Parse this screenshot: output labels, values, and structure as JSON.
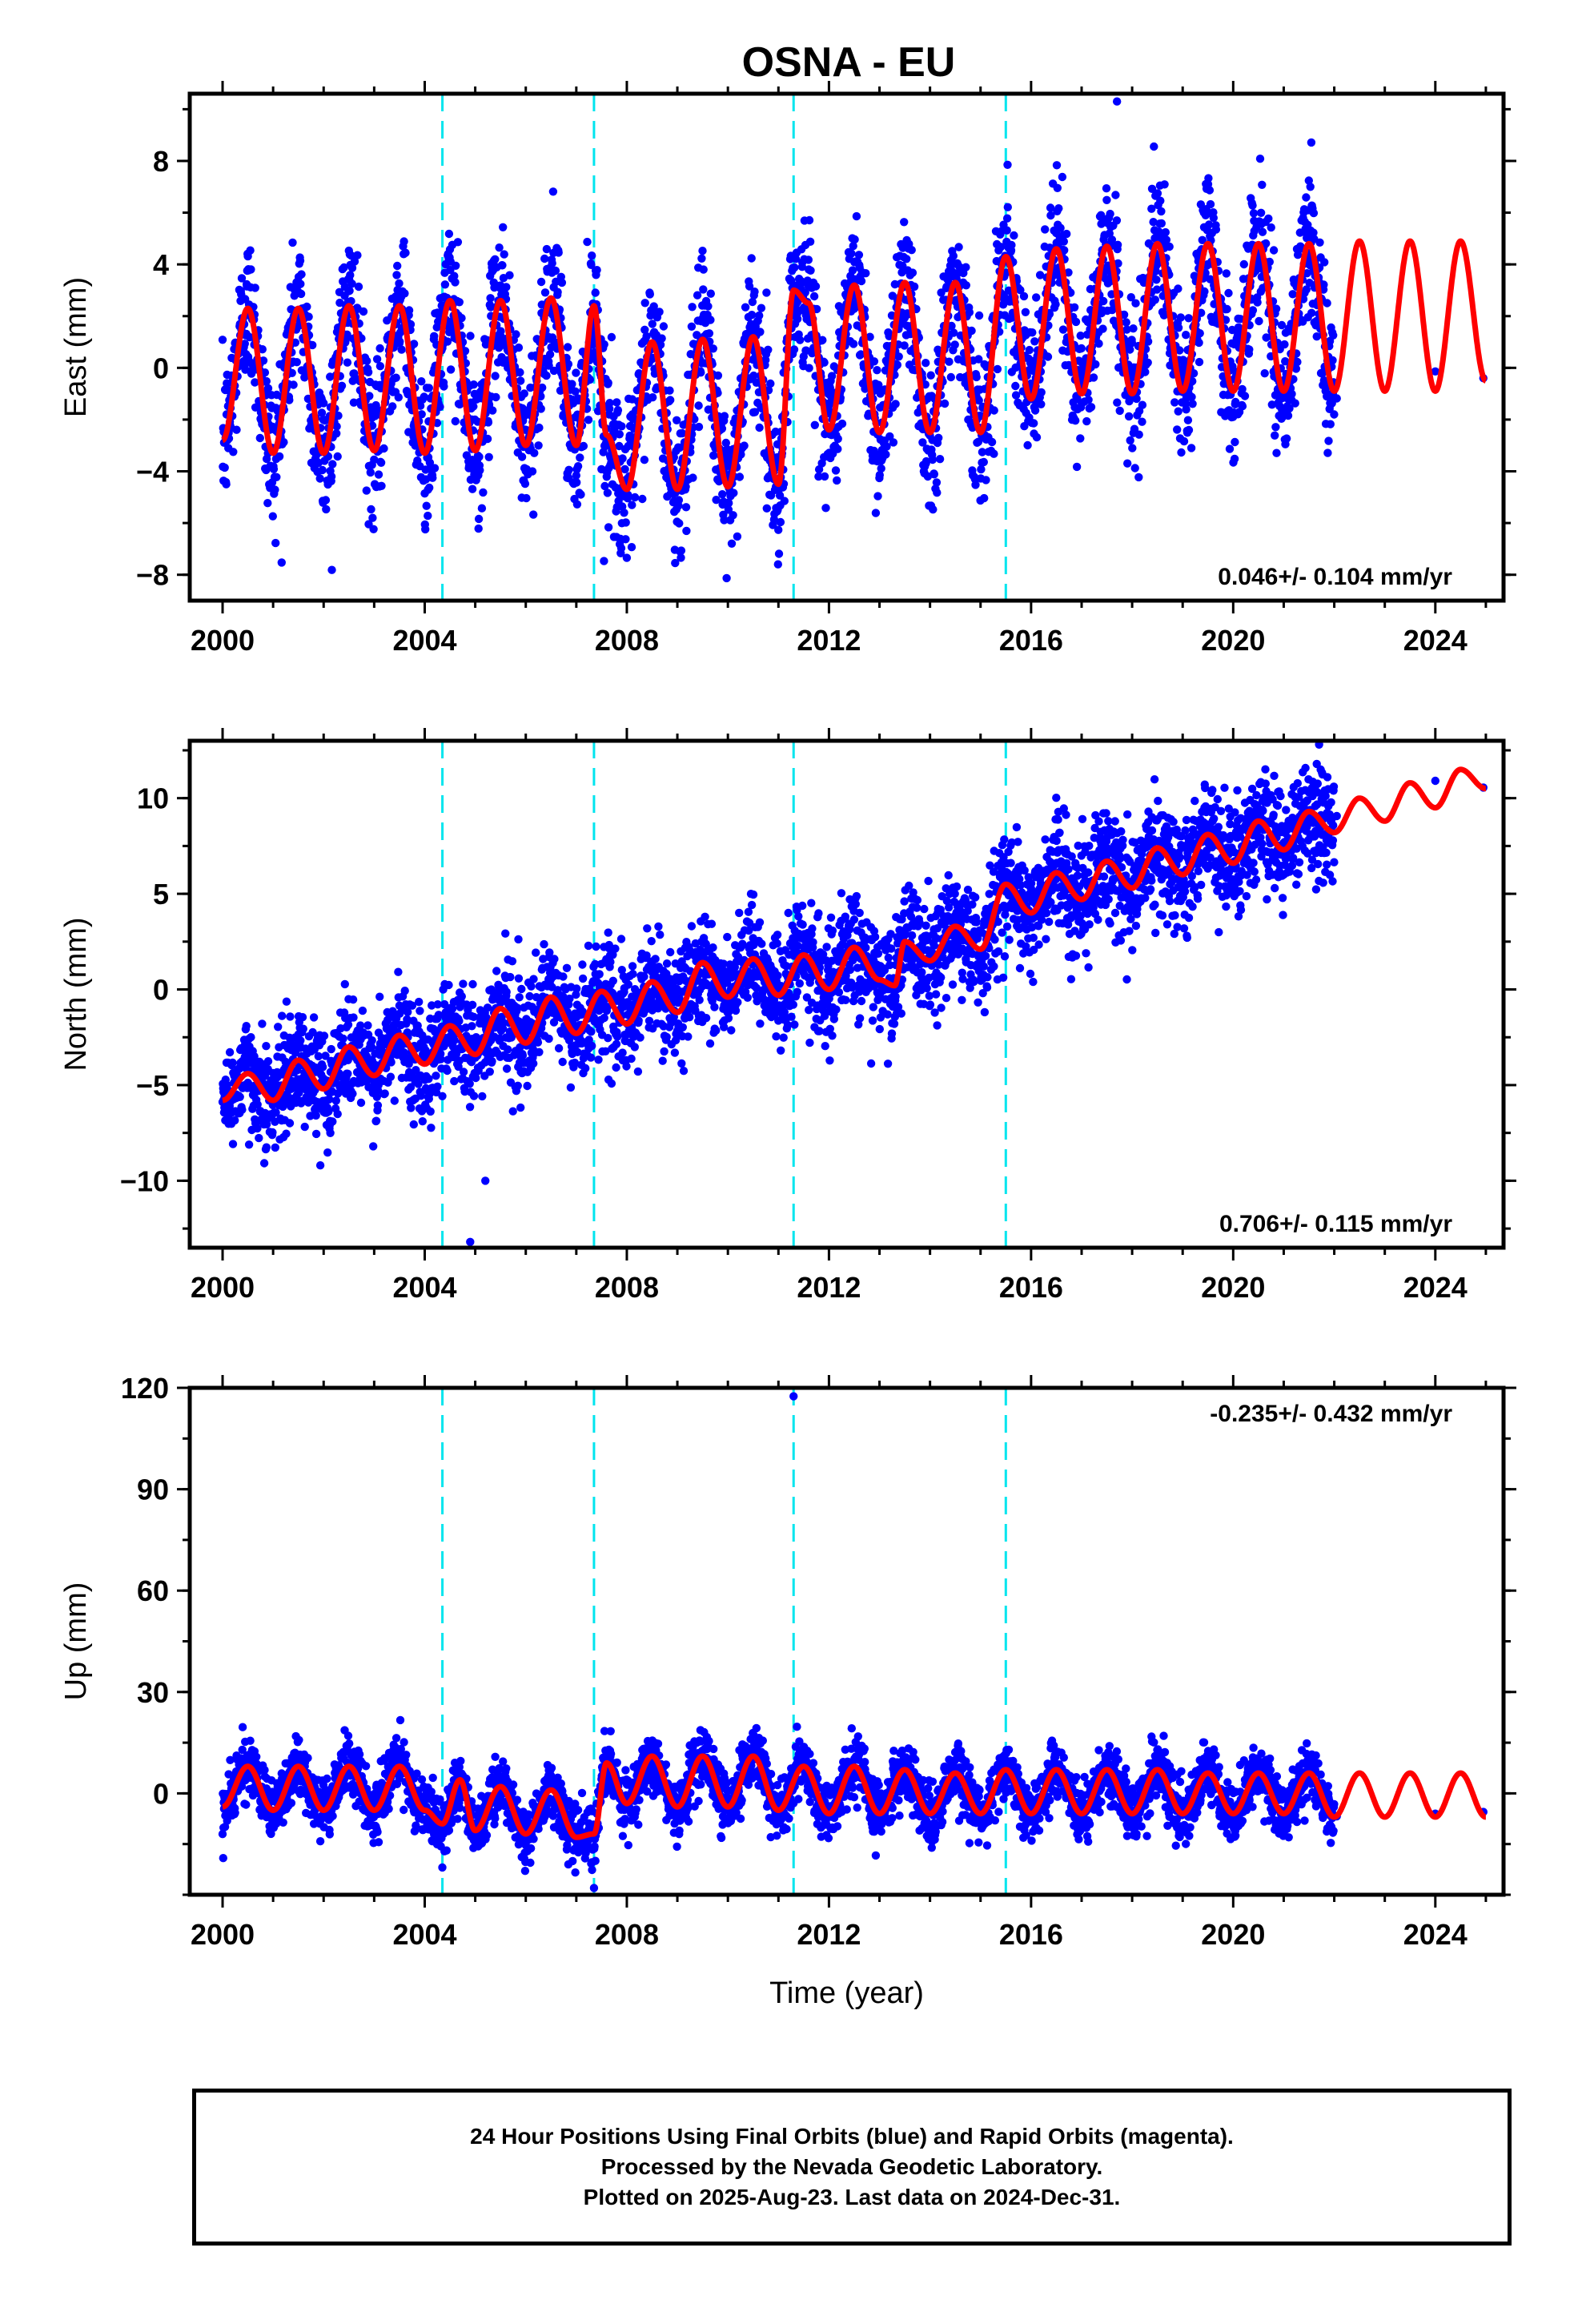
{
  "title": "OSNA - EU",
  "colors": {
    "data_points": "#0000ff",
    "model_fit": "#ff0000",
    "offset_lines": "#00e5ee",
    "frame": "#000000"
  },
  "chart_data": [
    {
      "type": "scatter",
      "component": "East",
      "ylabel": "East (mm)",
      "xlabel": "",
      "xlim": [
        1999.35,
        2025.35
      ],
      "ylim": [
        -9,
        10.6
      ],
      "xticks": [
        "2000",
        "2004",
        "2008",
        "2012",
        "2016",
        "2020",
        "2024"
      ],
      "yticks": [
        "−8",
        "−4",
        "0",
        "4",
        "8"
      ],
      "rate_label": "0.046+/- 0.104 mm/yr",
      "offset_epochs": [
        2004.35,
        2007.35,
        2011.3,
        2015.5
      ],
      "series": [
        {
          "name": "",
          "kind": "points",
          "color": "#0000ff",
          "x_range": [
            2000.0,
            2022.0
          ],
          "approx_outliers": [
            [
              2017.7,
              10.3
            ]
          ]
        },
        {
          "name": "",
          "kind": "model",
          "color": "#ff0000",
          "x": [
            2000.0,
            2000.5,
            2001.0,
            2001.5,
            2002.0,
            2002.5,
            2003.0,
            2003.5,
            2004.0,
            2004.5,
            2005.0,
            2005.5,
            2006.0,
            2006.5,
            2007.0,
            2007.35,
            2007.6,
            2008.0,
            2008.5,
            2009.0,
            2009.5,
            2010.0,
            2010.5,
            2011.0,
            2011.3,
            2011.6,
            2012.0,
            2012.5,
            2013.0,
            2013.5,
            2014.0,
            2014.5,
            2015.0,
            2015.5,
            2016.0,
            2016.5,
            2017.0,
            2017.5,
            2018.0,
            2018.5,
            2019.0,
            2019.5,
            2020.0,
            2020.5,
            2021.0,
            2021.5,
            2022.0,
            2022.5,
            2023.0,
            2023.5,
            2024.0,
            2024.5,
            2025.0
          ],
          "y": [
            -2.8,
            2.3,
            -3.3,
            2.3,
            -3.3,
            2.4,
            -3.2,
            2.4,
            -3.3,
            2.6,
            -3.2,
            2.6,
            -3.0,
            2.7,
            -3.0,
            2.4,
            -2.6,
            -4.7,
            1.0,
            -4.7,
            1.1,
            -4.6,
            1.2,
            -4.5,
            3.0,
            2.5,
            -2.4,
            3.2,
            -2.5,
            3.3,
            -2.5,
            3.3,
            -2.5,
            4.3,
            -1.2,
            4.6,
            -1.0,
            4.7,
            -1.0,
            4.8,
            -0.9,
            4.8,
            -0.9,
            4.8,
            -0.9,
            4.8,
            -0.9,
            4.9,
            -0.9,
            4.9,
            -0.9,
            4.9,
            -0.5
          ]
        }
      ]
    },
    {
      "type": "scatter",
      "component": "North",
      "ylabel": "North (mm)",
      "xlabel": "",
      "xlim": [
        1999.35,
        2025.35
      ],
      "ylim": [
        -13.5,
        13.0
      ],
      "xticks": [
        "2000",
        "2004",
        "2008",
        "2012",
        "2016",
        "2020",
        "2024"
      ],
      "yticks": [
        "−10",
        "−5",
        "0",
        "5",
        "10"
      ],
      "rate_label": "0.706+/- 0.115 mm/yr",
      "offset_epochs": [
        2004.35,
        2007.35,
        2011.3,
        2015.5
      ],
      "series": [
        {
          "name": "",
          "kind": "points",
          "color": "#0000ff",
          "x_range": [
            2000.0,
            2022.0
          ],
          "approx_outliers": [
            [
              2004.9,
              -13.2
            ],
            [
              2005.2,
              -10.0
            ],
            [
              2021.7,
              12.8
            ]
          ]
        },
        {
          "name": "",
          "kind": "model",
          "color": "#ff0000",
          "x": [
            2000.0,
            2000.5,
            2001.0,
            2001.5,
            2002.0,
            2002.5,
            2003.0,
            2003.5,
            2004.0,
            2004.5,
            2005.0,
            2005.5,
            2006.0,
            2006.5,
            2007.0,
            2007.5,
            2008.0,
            2008.5,
            2009.0,
            2009.5,
            2010.0,
            2010.5,
            2011.0,
            2011.5,
            2012.0,
            2012.5,
            2013.0,
            2013.3,
            2013.5,
            2014.0,
            2014.5,
            2015.0,
            2015.5,
            2016.0,
            2016.5,
            2017.0,
            2017.5,
            2018.0,
            2018.5,
            2019.0,
            2019.5,
            2020.0,
            2020.5,
            2021.0,
            2021.5,
            2022.0,
            2022.5,
            2023.0,
            2023.5,
            2024.0,
            2024.5,
            2025.0
          ],
          "y": [
            -5.8,
            -4.4,
            -5.8,
            -3.7,
            -5.2,
            -3.0,
            -4.5,
            -2.4,
            -3.9,
            -1.9,
            -3.4,
            -1.0,
            -2.8,
            -0.4,
            -2.3,
            -0.1,
            -1.8,
            0.4,
            -1.2,
            1.4,
            -0.4,
            1.6,
            -0.3,
            1.8,
            0.0,
            2.2,
            0.5,
            0.2,
            2.5,
            1.5,
            3.3,
            2.1,
            5.5,
            4.0,
            6.1,
            4.7,
            6.7,
            5.3,
            7.4,
            6.0,
            8.1,
            6.6,
            8.8,
            7.3,
            9.3,
            8.2,
            10.0,
            8.8,
            10.8,
            9.5,
            11.5,
            10.5
          ]
        }
      ]
    },
    {
      "type": "scatter",
      "component": "Up",
      "ylabel": "Up (mm)",
      "xlabel": "Time (year)",
      "xlim": [
        1999.35,
        2025.35
      ],
      "ylim": [
        -30,
        120
      ],
      "xticks": [
        "2000",
        "2004",
        "2008",
        "2012",
        "2016",
        "2020",
        "2024"
      ],
      "yticks": [
        "0",
        "30",
        "60",
        "90",
        "120"
      ],
      "rate_label": "-0.235+/- 0.432 mm/yr",
      "offset_epochs": [
        2004.35,
        2007.35,
        2011.3,
        2015.5
      ],
      "series": [
        {
          "name": "",
          "kind": "points",
          "color": "#0000ff",
          "x_range": [
            2000.0,
            2022.0
          ],
          "approx_outliers": [
            [
              2011.3,
              117.5
            ],
            [
              2007.35,
              -28.0
            ]
          ]
        },
        {
          "name": "",
          "kind": "model",
          "color": "#ff0000",
          "x": [
            2000.0,
            2000.5,
            2001.0,
            2001.5,
            2002.0,
            2002.5,
            2003.0,
            2003.5,
            2004.0,
            2004.35,
            2004.7,
            2005.0,
            2005.5,
            2006.0,
            2006.5,
            2007.0,
            2007.35,
            2007.6,
            2008.0,
            2008.5,
            2009.0,
            2009.5,
            2010.0,
            2010.5,
            2011.0,
            2011.5,
            2012.0,
            2012.5,
            2013.0,
            2013.5,
            2014.0,
            2014.5,
            2015.0,
            2015.5,
            2016.0,
            2016.5,
            2017.0,
            2017.5,
            2018.0,
            2018.5,
            2019.0,
            2019.5,
            2020.0,
            2020.5,
            2021.0,
            2021.5,
            2022.0,
            2022.5,
            2023.0,
            2023.5,
            2024.0,
            2024.5,
            2025.0
          ],
          "y": [
            -4,
            8,
            -5,
            8,
            -5,
            8,
            -5,
            8,
            -5,
            -9,
            4,
            -11,
            2,
            -12,
            1,
            -13,
            -12,
            9,
            -3,
            11,
            -4,
            11,
            -4,
            11,
            -5,
            8,
            -6,
            8,
            -6,
            7,
            -6,
            6,
            -6,
            7,
            -6,
            7,
            -6,
            7,
            -6,
            7,
            -6,
            6,
            -6,
            6,
            -6,
            6,
            -7,
            6,
            -7,
            6,
            -7,
            6,
            -7
          ]
        }
      ]
    }
  ],
  "caption": {
    "line1": "24 Hour Positions Using Final Orbits (blue) and Rapid Orbits (magenta).",
    "line2": "Processed by the Nevada Geodetic Laboratory.",
    "line3": "Plotted on 2025-Aug-23. Last data on 2024-Dec-31."
  }
}
